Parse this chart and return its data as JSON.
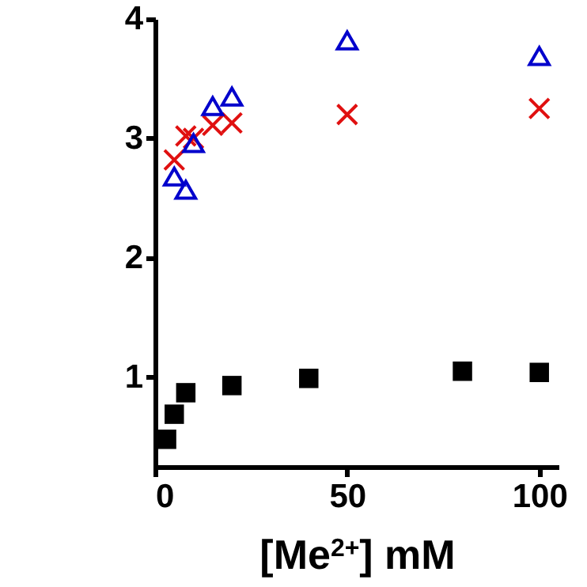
{
  "chart_data": {
    "type": "scatter",
    "xlabel": "[Me$^{2+}$] mM",
    "xlim": [
      0,
      105
    ],
    "xticks": [
      0,
      50,
      100
    ],
    "ylim": [
      0.25,
      4
    ],
    "yticks": [
      1,
      2,
      3,
      4
    ],
    "series": [
      {
        "color": "#000000",
        "marker": "square",
        "x": [
          3,
          5,
          8,
          20,
          40,
          80,
          100
        ],
        "values": [
          0.48,
          0.69,
          0.87,
          0.93,
          0.99,
          1.05,
          1.04
        ]
      },
      {
        "color": "#e01010",
        "marker": "cross",
        "x": [
          5,
          8,
          10,
          15,
          20,
          50,
          100
        ],
        "values": [
          2.82,
          3.02,
          3.0,
          3.11,
          3.13,
          3.2,
          3.25
        ]
      },
      {
        "color": "#0000cc",
        "marker": "triangle",
        "x": [
          5,
          8,
          10,
          15,
          20,
          50,
          100
        ],
        "values": [
          2.68,
          2.57,
          2.96,
          3.27,
          3.35,
          3.82,
          3.69
        ]
      }
    ]
  }
}
